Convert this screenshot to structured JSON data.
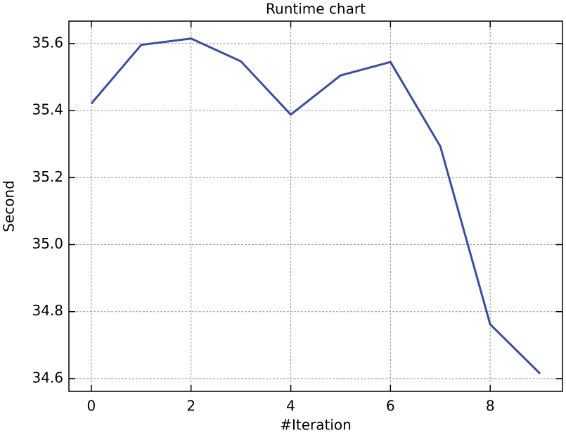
{
  "chart_data": {
    "type": "line",
    "title": "Runtime chart",
    "x_label": "#Iteration",
    "y_label": "Second",
    "x": [
      0,
      1,
      2,
      3,
      4,
      5,
      6,
      7,
      8,
      9
    ],
    "series": [
      {
        "name": "Runtime",
        "color": "#3b4f9f",
        "values": [
          35.421,
          35.596,
          35.615,
          35.547,
          35.388,
          35.505,
          35.545,
          35.293,
          34.762,
          34.615
        ]
      }
    ],
    "xlim": [
      -0.45,
      9.45
    ],
    "xticks": [
      0,
      2,
      4,
      6,
      8
    ],
    "ylim": [
      34.562,
      35.667
    ],
    "yticks": [
      34.6,
      34.8,
      {
        "value": 35,
        "label": "35.0"
      },
      35.2,
      35.4,
      35.6
    ],
    "grid": true,
    "legend": false
  }
}
